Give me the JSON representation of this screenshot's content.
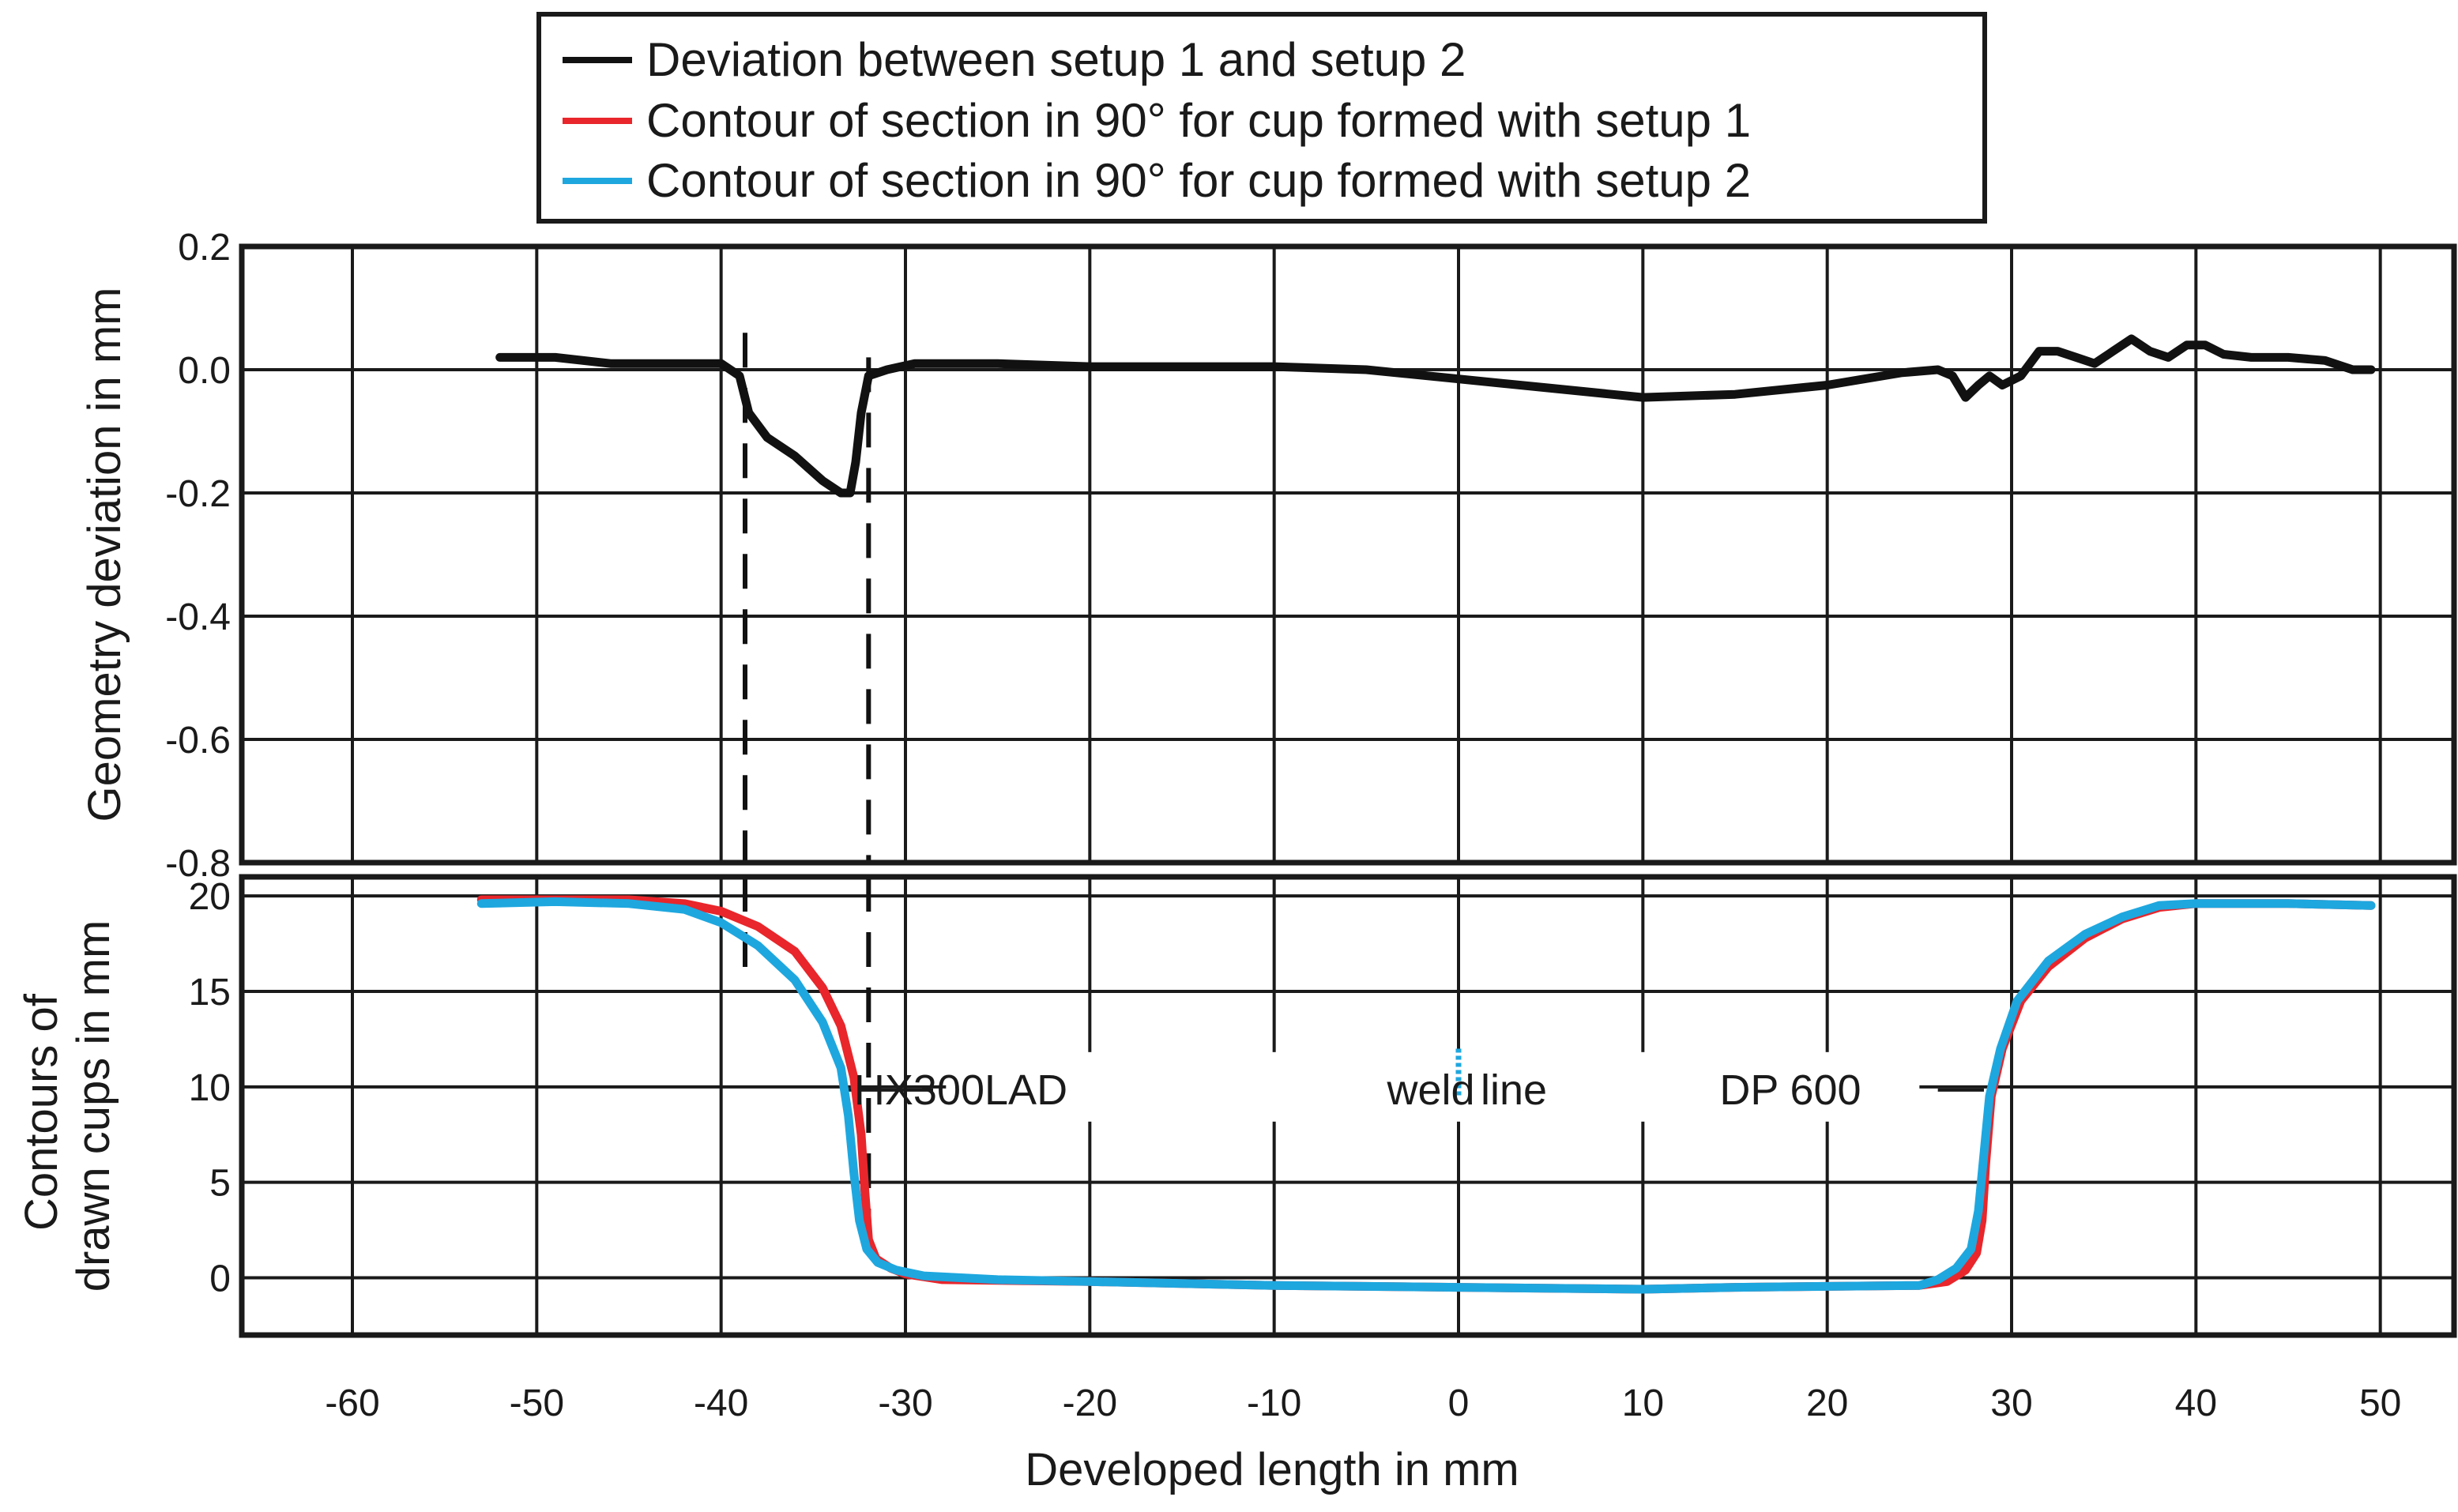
{
  "chart_data": {
    "type": "line",
    "legend": {
      "placement": "top-center",
      "entries": [
        {
          "label": "Deviation between setup 1 and setup 2",
          "color": "#111111"
        },
        {
          "label": "Contour of section in 90° for cup formed with setup 1",
          "color": "#e8262b"
        },
        {
          "label": "Contour of section in 90° for cup formed with setup 2",
          "color": "#1ea7df"
        }
      ]
    },
    "x_axis": {
      "label": "Developed length in mm",
      "ticks": [
        {
          "value": -60,
          "label": "-60"
        },
        {
          "value": -50,
          "label": "-50"
        },
        {
          "value": -40,
          "label": "-40"
        },
        {
          "value": -30,
          "label": "-30"
        },
        {
          "value": -20,
          "label": "-20"
        },
        {
          "value": -10,
          "label": "-10"
        },
        {
          "value": 0,
          "label": "0"
        },
        {
          "value": 10,
          "label": "10"
        },
        {
          "value": 20,
          "label": "20"
        },
        {
          "value": 30,
          "label": "30"
        },
        {
          "value": 40,
          "label": "40"
        },
        {
          "value": 50,
          "label": "50"
        }
      ]
    },
    "panels": [
      {
        "id": "deviation",
        "ylabel": "Geometry deviation in mm",
        "ylim": [
          -0.8,
          0.2
        ],
        "yticks": [
          {
            "value": 0.2,
            "label": "0.2"
          },
          {
            "value": 0.0,
            "label": "0.0"
          },
          {
            "value": -0.2,
            "label": "-0.2"
          },
          {
            "value": -0.4,
            "label": "-0.4"
          },
          {
            "value": -0.6,
            "label": "-0.6"
          },
          {
            "value": -0.8,
            "label": "-0.8"
          }
        ],
        "series": [
          {
            "name": "Deviation between setup 1 and setup 2",
            "color": "#111111",
            "points": [
              [
                -52,
                0.02
              ],
              [
                -49,
                0.02
              ],
              [
                -46,
                0.01
              ],
              [
                -42,
                0.01
              ],
              [
                -40,
                0.01
              ],
              [
                -39,
                -0.01
              ],
              [
                -38.5,
                -0.07
              ],
              [
                -37.5,
                -0.11
              ],
              [
                -36,
                -0.14
              ],
              [
                -34.5,
                -0.18
              ],
              [
                -33.5,
                -0.2
              ],
              [
                -33,
                -0.2
              ],
              [
                -32.7,
                -0.15
              ],
              [
                -32.4,
                -0.07
              ],
              [
                -32,
                -0.01
              ],
              [
                -31,
                0.0
              ],
              [
                -29.5,
                0.01
              ],
              [
                -25,
                0.01
              ],
              [
                -20,
                0.005
              ],
              [
                -10,
                0.005
              ],
              [
                -5,
                0.0
              ],
              [
                0,
                -0.015
              ],
              [
                5,
                -0.03
              ],
              [
                10,
                -0.045
              ],
              [
                15,
                -0.04
              ],
              [
                20,
                -0.025
              ],
              [
                24,
                -0.005
              ],
              [
                26,
                0.0
              ],
              [
                26.8,
                -0.01
              ],
              [
                27.5,
                -0.045
              ],
              [
                28.2,
                -0.025
              ],
              [
                28.8,
                -0.01
              ],
              [
                29.5,
                -0.025
              ],
              [
                30.5,
                -0.01
              ],
              [
                31.5,
                0.03
              ],
              [
                32.5,
                0.03
              ],
              [
                33.5,
                0.02
              ],
              [
                34.5,
                0.01
              ],
              [
                35.5,
                0.03
              ],
              [
                36.5,
                0.05
              ],
              [
                37.5,
                0.03
              ],
              [
                38.5,
                0.02
              ],
              [
                39.5,
                0.04
              ],
              [
                40.5,
                0.04
              ],
              [
                41.5,
                0.025
              ],
              [
                43,
                0.02
              ],
              [
                45,
                0.02
              ],
              [
                47,
                0.015
              ],
              [
                48.5,
                0.0
              ],
              [
                49.5,
                0.0
              ]
            ]
          }
        ],
        "reference_lines": [
          {
            "x": -38.7,
            "y_from": 0.06,
            "y_to": -0.8,
            "style": "dashed"
          },
          {
            "x": -32,
            "y_from": 0.02,
            "y_to": -0.8,
            "style": "dashed"
          }
        ]
      },
      {
        "id": "contours",
        "ylabel": "Contours of drawn cups in mm",
        "ylabel_lines": [
          "Contours of",
          "drawn cups in mm"
        ],
        "ylim": [
          -3,
          21
        ],
        "yticks": [
          {
            "value": 20,
            "label": "20"
          },
          {
            "value": 15,
            "label": "15"
          },
          {
            "value": 10,
            "label": "10"
          },
          {
            "value": 5,
            "label": "5"
          },
          {
            "value": 0,
            "label": "0"
          }
        ],
        "series": [
          {
            "name": "Contour of section in 90° for cup formed with setup 1",
            "color": "#e8262b",
            "points": [
              [
                -53,
                19.8
              ],
              [
                -49,
                19.8
              ],
              [
                -45,
                19.8
              ],
              [
                -42,
                19.6
              ],
              [
                -40,
                19.2
              ],
              [
                -38,
                18.4
              ],
              [
                -36,
                17.1
              ],
              [
                -34.5,
                15.2
              ],
              [
                -33.5,
                13.2
              ],
              [
                -32.8,
                10.5
              ],
              [
                -32.4,
                7.5
              ],
              [
                -32.2,
                4.5
              ],
              [
                -32,
                2
              ],
              [
                -31.6,
                1
              ],
              [
                -30.8,
                0.5
              ],
              [
                -30,
                0.2
              ],
              [
                -28,
                -0.1
              ],
              [
                -20,
                -0.2
              ],
              [
                -10,
                -0.4
              ],
              [
                0,
                -0.5
              ],
              [
                10,
                -0.6
              ],
              [
                15,
                -0.5
              ],
              [
                20,
                -0.45
              ],
              [
                25,
                -0.4
              ],
              [
                26.5,
                -0.2
              ],
              [
                27.5,
                0.4
              ],
              [
                28.1,
                1.3
              ],
              [
                28.4,
                3
              ],
              [
                28.6,
                6
              ],
              [
                28.9,
                9.5
              ],
              [
                29.5,
                12
              ],
              [
                30.5,
                14.5
              ],
              [
                32,
                16.3
              ],
              [
                34,
                17.8
              ],
              [
                36,
                18.8
              ],
              [
                38,
                19.4
              ],
              [
                40,
                19.6
              ],
              [
                45,
                19.6
              ],
              [
                49.5,
                19.5
              ]
            ]
          },
          {
            "name": "Contour of section in 90° for cup formed with setup 2",
            "color": "#1ea7df",
            "points": [
              [
                -53,
                19.6
              ],
              [
                -49,
                19.7
              ],
              [
                -45,
                19.6
              ],
              [
                -42,
                19.3
              ],
              [
                -40,
                18.6
              ],
              [
                -38,
                17.4
              ],
              [
                -36,
                15.6
              ],
              [
                -34.5,
                13.4
              ],
              [
                -33.5,
                11
              ],
              [
                -33.1,
                8.5
              ],
              [
                -32.8,
                5.5
              ],
              [
                -32.5,
                3
              ],
              [
                -32.1,
                1.5
              ],
              [
                -31.5,
                0.8
              ],
              [
                -30.5,
                0.4
              ],
              [
                -29,
                0.1
              ],
              [
                -25,
                -0.1
              ],
              [
                -20,
                -0.2
              ],
              [
                -10,
                -0.4
              ],
              [
                0,
                -0.5
              ],
              [
                10,
                -0.6
              ],
              [
                15,
                -0.5
              ],
              [
                20,
                -0.45
              ],
              [
                25,
                -0.4
              ],
              [
                26,
                -0.1
              ],
              [
                27,
                0.5
              ],
              [
                27.8,
                1.5
              ],
              [
                28.2,
                3.5
              ],
              [
                28.5,
                6.5
              ],
              [
                28.8,
                9.5
              ],
              [
                29.4,
                12
              ],
              [
                30.3,
                14.5
              ],
              [
                32,
                16.6
              ],
              [
                34,
                18
              ],
              [
                36,
                18.9
              ],
              [
                38,
                19.5
              ],
              [
                40,
                19.6
              ],
              [
                45,
                19.6
              ],
              [
                49.5,
                19.5
              ]
            ]
          }
        ],
        "reference_lines": [
          {
            "x": -38.7,
            "y_from": 21,
            "y_to": 16,
            "style": "dashed"
          },
          {
            "x": -32,
            "y_from": 21,
            "y_to": 2,
            "style": "dashed"
          },
          {
            "x": 0,
            "y_from": 12,
            "y_to": 9.5,
            "style": "dotted-blue"
          }
        ],
        "annotations": [
          {
            "text": "HX300LAD",
            "x": -27,
            "y": 10
          },
          {
            "text": "weld",
            "x": -1.5,
            "y": 10
          },
          {
            "text": "line",
            "x": 3,
            "y": 10
          },
          {
            "text": "DP 600",
            "x": 18,
            "y": 10
          }
        ]
      }
    ]
  }
}
